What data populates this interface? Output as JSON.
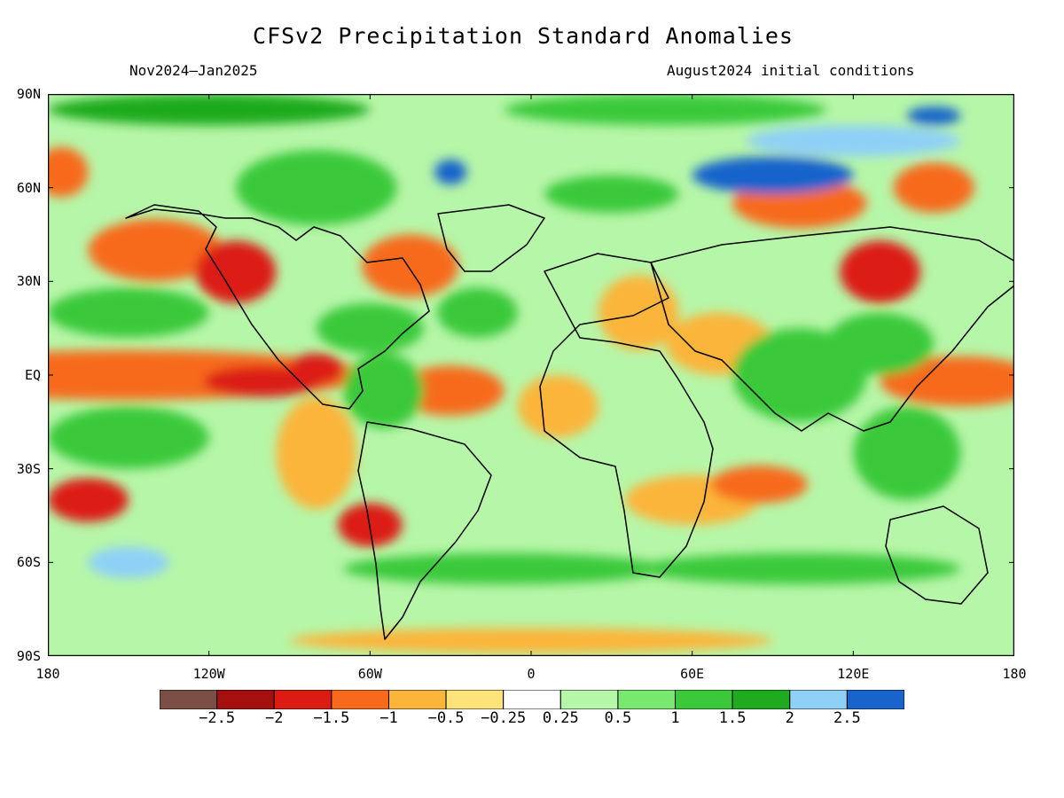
{
  "title": "CFSv2 Precipitation Standard Anomalies",
  "period": "Nov2024–Jan2025",
  "initial_conditions": "August2024 initial conditions",
  "lat_labels": [
    "90N",
    "60N",
    "30N",
    "EQ",
    "30S",
    "60S",
    "90S"
  ],
  "lat_values": [
    90,
    60,
    30,
    0,
    -30,
    -60,
    -90
  ],
  "lon_labels": [
    "180",
    "120W",
    "60W",
    "0",
    "60E",
    "120E",
    "180"
  ],
  "lon_values": [
    -180,
    -120,
    -60,
    0,
    60,
    120,
    180
  ],
  "colorbar": {
    "bins": [
      {
        "color": "#7b4f45"
      },
      {
        "color": "#a50f0f"
      },
      {
        "color": "#dc1c13"
      },
      {
        "color": "#f76a1c"
      },
      {
        "color": "#fbb53a"
      },
      {
        "color": "#fde37a"
      },
      {
        "color": "#ffffff"
      },
      {
        "color": "#b6f6a8"
      },
      {
        "color": "#78e86e"
      },
      {
        "color": "#3bc93b"
      },
      {
        "color": "#1faa1f"
      },
      {
        "color": "#8fd0f7"
      },
      {
        "color": "#1864cc"
      }
    ],
    "tick_labels": [
      "−2.5",
      "−2",
      "−1.5",
      "−1",
      "−0.5",
      "−0.25",
      "0.25",
      "0.5",
      "1",
      "1.5",
      "2",
      "2.5"
    ]
  },
  "regions": [
    {
      "lon": -150,
      "lat": 0,
      "value": -1.2,
      "rx": 90,
      "ry": 8
    },
    {
      "lon": -100,
      "lat": -2,
      "value": -1.8,
      "rx": 22,
      "ry": 5
    },
    {
      "lon": -80,
      "lat": 2,
      "value": -2.0,
      "rx": 10,
      "ry": 5
    },
    {
      "lon": 160,
      "lat": -2,
      "value": -1.4,
      "rx": 30,
      "ry": 8
    },
    {
      "lon": -140,
      "lat": 40,
      "value": -1.2,
      "rx": 25,
      "ry": 10
    },
    {
      "lon": -110,
      "lat": 33,
      "value": -1.6,
      "rx": 15,
      "ry": 10
    },
    {
      "lon": -45,
      "lat": 35,
      "value": -1.5,
      "rx": 18,
      "ry": 10
    },
    {
      "lon": -30,
      "lat": -5,
      "value": -1.2,
      "rx": 20,
      "ry": 8
    },
    {
      "lon": 10,
      "lat": -10,
      "value": -0.8,
      "rx": 15,
      "ry": 10
    },
    {
      "lon": -60,
      "lat": -48,
      "value": -1.8,
      "rx": 12,
      "ry": 7
    },
    {
      "lon": -80,
      "lat": -25,
      "value": -1.0,
      "rx": 15,
      "ry": 18
    },
    {
      "lon": -165,
      "lat": -40,
      "value": -1.6,
      "rx": 15,
      "ry": 7
    },
    {
      "lon": 60,
      "lat": -40,
      "value": -1.0,
      "rx": 25,
      "ry": 8
    },
    {
      "lon": 85,
      "lat": -35,
      "value": -1.2,
      "rx": 18,
      "ry": 6
    },
    {
      "lon": 130,
      "lat": 33,
      "value": -1.8,
      "rx": 15,
      "ry": 10
    },
    {
      "lon": 100,
      "lat": 55,
      "value": -1.3,
      "rx": 25,
      "ry": 8
    },
    {
      "lon": 150,
      "lat": 60,
      "value": -1.4,
      "rx": 15,
      "ry": 8
    },
    {
      "lon": -175,
      "lat": 65,
      "value": -1.5,
      "rx": 10,
      "ry": 8
    },
    {
      "lon": 40,
      "lat": 20,
      "value": -0.8,
      "rx": 15,
      "ry": 12
    },
    {
      "lon": 70,
      "lat": 10,
      "value": -0.8,
      "rx": 20,
      "ry": 10
    },
    {
      "lon": 100,
      "lat": 0,
      "value": 1.3,
      "rx": 25,
      "ry": 15
    },
    {
      "lon": 130,
      "lat": 10,
      "value": 1.4,
      "rx": 20,
      "ry": 10
    },
    {
      "lon": 140,
      "lat": -25,
      "value": 1.3,
      "rx": 20,
      "ry": 15
    },
    {
      "lon": -55,
      "lat": -5,
      "value": 1.2,
      "rx": 15,
      "ry": 12
    },
    {
      "lon": -60,
      "lat": 15,
      "value": 1.3,
      "rx": 20,
      "ry": 8
    },
    {
      "lon": -20,
      "lat": 20,
      "value": 1.0,
      "rx": 15,
      "ry": 8
    },
    {
      "lon": -80,
      "lat": 60,
      "value": 1.4,
      "rx": 30,
      "ry": 12
    },
    {
      "lon": -150,
      "lat": 20,
      "value": 1.0,
      "rx": 30,
      "ry": 8
    },
    {
      "lon": -150,
      "lat": -20,
      "value": 1.2,
      "rx": 30,
      "ry": 10
    },
    {
      "lon": -30,
      "lat": 65,
      "value": 2.6,
      "rx": 6,
      "ry": 4
    },
    {
      "lon": 90,
      "lat": 64,
      "value": 2.7,
      "rx": 30,
      "ry": 6
    },
    {
      "lon": 150,
      "lat": 83,
      "value": 2.6,
      "rx": 10,
      "ry": 3
    },
    {
      "lon": 120,
      "lat": 75,
      "value": 2.2,
      "rx": 40,
      "ry": 5
    },
    {
      "lon": 30,
      "lat": 58,
      "value": 1.2,
      "rx": 25,
      "ry": 6
    },
    {
      "lon": -10,
      "lat": -62,
      "value": 1.3,
      "rx": 60,
      "ry": 5
    },
    {
      "lon": 100,
      "lat": -62,
      "value": 1.1,
      "rx": 60,
      "ry": 5
    },
    {
      "lon": -150,
      "lat": -60,
      "value": 2.3,
      "rx": 15,
      "ry": 5
    },
    {
      "lon": -120,
      "lat": 85,
      "value": 1.5,
      "rx": 60,
      "ry": 5
    },
    {
      "lon": 50,
      "lat": 85,
      "value": 1.4,
      "rx": 60,
      "ry": 5
    },
    {
      "lon": 0,
      "lat": -85,
      "value": -0.6,
      "rx": 90,
      "ry": 4
    }
  ]
}
